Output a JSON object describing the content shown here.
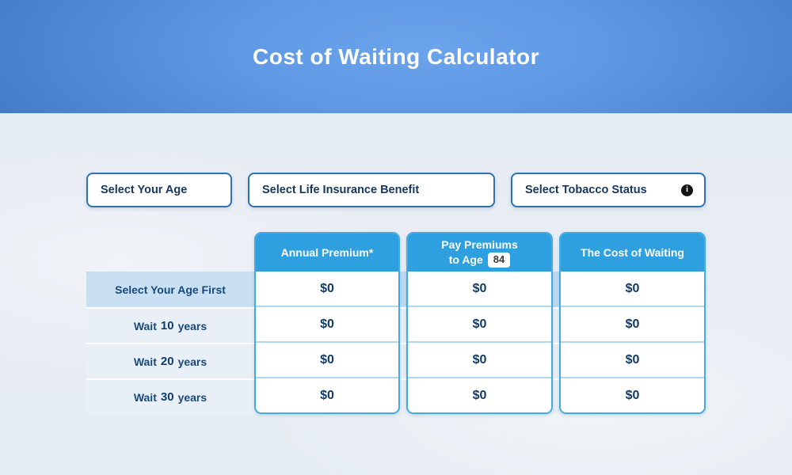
{
  "header": {
    "title": "Cost of Waiting Calculator"
  },
  "filters": {
    "age": {
      "label": "Select Your Age"
    },
    "benefit": {
      "label": "Select Life Insurance Benefit"
    },
    "tobacco": {
      "label": "Select Tobacco Status",
      "info_glyph": "i"
    }
  },
  "table": {
    "row_labels": [
      {
        "prefix": "Select Your Age First",
        "number": "",
        "suffix": ""
      },
      {
        "prefix": "Wait",
        "number": "10",
        "suffix": "years"
      },
      {
        "prefix": "Wait",
        "number": "20",
        "suffix": "years"
      },
      {
        "prefix": "Wait",
        "number": "30",
        "suffix": "years"
      }
    ],
    "columns": [
      {
        "title": "Annual Premium*",
        "values": [
          "$0",
          "$0",
          "$0",
          "$0"
        ]
      },
      {
        "title_line1": "Pay Premiums",
        "title_line2": "to Age",
        "age_value": "84",
        "values": [
          "$0",
          "$0",
          "$0",
          "$0"
        ]
      },
      {
        "title": "The Cost of Waiting",
        "values": [
          "$0",
          "$0",
          "$0",
          "$0"
        ]
      }
    ]
  },
  "colors": {
    "accent_blue": "#2fa0df",
    "navy_text": "#16365f",
    "dropdown_border": "#2e72b4",
    "header_gradient_center": "#6ba3ec",
    "header_gradient_edge": "#154689",
    "row_highlight": "#c8e0f1"
  }
}
